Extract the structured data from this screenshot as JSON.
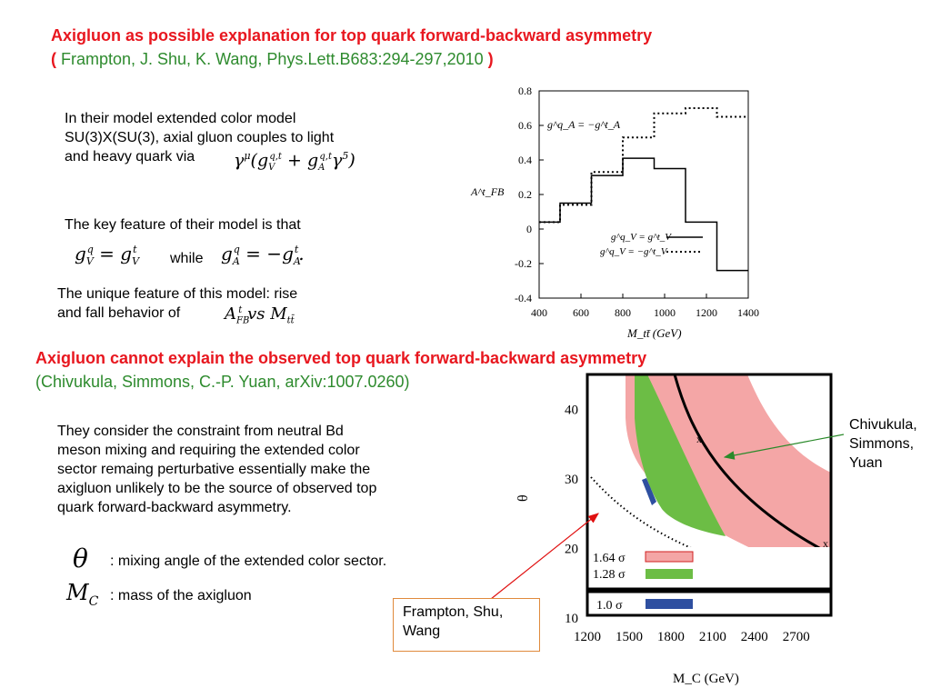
{
  "section1": {
    "title": "Axigluon as possible explanation for top quark forward-backward asymmetry",
    "open_paren": "(",
    "citation": " Frampton, J. Shu, K. Wang, Phys.Lett.B683:294-297,2010 ",
    "close_paren": ")",
    "model_line1": "In their model extended color model",
    "model_line2": "SU(3)X(SU(3), axial gluon couples to light",
    "model_line3": "and heavy quark via",
    "key_feature": "The key feature of their model is that",
    "while_word": "while",
    "unique_line1": "The unique feature of this model: rise",
    "unique_line2": "and fall behavior of"
  },
  "section2": {
    "title": "Axigluon cannot explain the observed top quark forward-backward asymmetry",
    "citation": "(Chivukula, Simmons, C.-P. Yuan, arXiv:1007.0260)",
    "para_lines": [
      "They consider the constraint from neutral Bd",
      "meson mixing and requiring the extended color",
      "sector remaing perturbative essentially make the",
      "axigluon unlikely to be the source of observed top",
      "quark forward-backward asymmetry."
    ],
    "theta_desc": ": mixing angle of the extended color sector.",
    "mc_desc": ": mass of the axigluon",
    "label_chivukula": [
      "Chivukula,",
      "Simmons,",
      "Yuan"
    ],
    "label_frampton": [
      "Frampton, Shu,",
      "Wang"
    ]
  },
  "colors": {
    "title_red": "#e8171f",
    "citation_green": "#2e8b2e",
    "band_pink": "#f4a6a6",
    "band_green": "#6cbd45",
    "band_blue": "#2e4fa0",
    "arrow_red": "#e01010",
    "arrow_green": "#2a8a2a",
    "callout_border": "#e08a3c"
  },
  "chart_data": [
    {
      "type": "line",
      "xlabel": "M_tt̄ (GeV)",
      "ylabel": "A^t_FB",
      "xlim": [
        400,
        1400
      ],
      "ylim": [
        -0.4,
        0.8
      ],
      "x_ticks": [
        "400",
        "600",
        "800",
        "1000",
        "1200",
        "1400"
      ],
      "y_ticks": [
        "0.8",
        "0.6",
        "0.4",
        "0.2",
        "0",
        "-0.2",
        "-0.4"
      ],
      "grid": false,
      "legend_position": "lower-right",
      "annotation": "g^q_A = −g^t_A",
      "series": [
        {
          "name": "g^q_V = g^t_V",
          "style": "solid",
          "bin_edges": [
            400,
            500,
            650,
            800,
            950,
            1100,
            1250,
            1400
          ],
          "values": [
            0.04,
            0.15,
            0.31,
            0.41,
            0.35,
            0.04,
            -0.24
          ]
        },
        {
          "name": "g^q_V = −g^t_V",
          "style": "dotted",
          "bin_edges": [
            400,
            500,
            650,
            800,
            950,
            1100,
            1250,
            1400
          ],
          "values": [
            0.04,
            0.14,
            0.33,
            0.53,
            0.67,
            0.7,
            0.65
          ]
        }
      ]
    },
    {
      "type": "area",
      "xlabel": "M_C (GeV)",
      "ylabel": "θ",
      "xlim": [
        1200,
        2950
      ],
      "ylim": [
        10,
        45
      ],
      "x_ticks": [
        "1200",
        "1500",
        "1800",
        "2100",
        "2400",
        "2700"
      ],
      "y_ticks": [
        "40",
        "30",
        "20",
        "10"
      ],
      "legend": [
        "1.64 σ",
        "1.28 σ",
        "1.0 σ"
      ],
      "markers": [
        "x",
        "x"
      ]
    }
  ]
}
